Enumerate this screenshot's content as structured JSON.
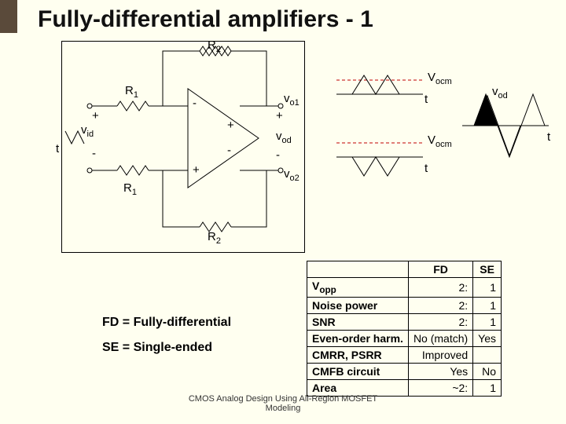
{
  "page": {
    "title": "Fully-differential amplifiers - 1",
    "footer_line1": "CMOS Analog Design Using All-Region MOSFET",
    "footer_line2": "Modeling"
  },
  "circuit": {
    "R2_top": "R",
    "R2_top_sub": "2",
    "R2_bot": "R",
    "R2_bot_sub": "2",
    "R1_top": "R",
    "R1_top_sub": "1",
    "R1_bot": "R",
    "R1_bot_sub": "1",
    "in_plus": "+",
    "in_minus": "-",
    "vid": "v",
    "vid_sub": "id",
    "t_left": "t",
    "amp_top_minus": "-",
    "amp_top_plus": "+",
    "amp_bot_minus": "-",
    "amp_bot_plus": "+",
    "vo1": "v",
    "vo1_sub": "o1",
    "out_plus": "+",
    "vod": "v",
    "vod_sub": "od",
    "out_minus": "-",
    "vo2": "v",
    "vo2_sub": "o2",
    "colors": {
      "stroke": "#000000",
      "bg": "#fffff0"
    }
  },
  "waves": {
    "Vocm_top": "V",
    "Vocm_top_sub": "ocm",
    "Vocm_bot": "V",
    "Vocm_bot_sub": "ocm",
    "t1": "t",
    "t2": "t",
    "t3": "t",
    "vod_lbl": "v",
    "vod_lbl_sub": "od",
    "dash_color": "#c00000",
    "stroke": "#000000"
  },
  "table": {
    "hdr_fd": "FD",
    "hdr_se": "SE",
    "rows": [
      {
        "label_html": "V<sub>opp</sub>",
        "fd": "2:",
        "se": "1"
      },
      {
        "label_html": "Noise power",
        "fd": "2:",
        "se": "1"
      },
      {
        "label_html": "SNR",
        "fd": "2:",
        "se": "1"
      },
      {
        "label_html": "Even-order harm.",
        "fd": "No (match)",
        "se": "Yes"
      },
      {
        "label_html": "CMRR, PSRR",
        "fd": "Improved",
        "se": ""
      },
      {
        "label_html": "CMFB circuit",
        "fd": "Yes",
        "se": "No"
      },
      {
        "label_html": "Area",
        "fd": "~2:",
        "se": "1"
      }
    ]
  },
  "defs": {
    "fd": "FD = Fully-differential",
    "se": "SE = Single-ended"
  }
}
